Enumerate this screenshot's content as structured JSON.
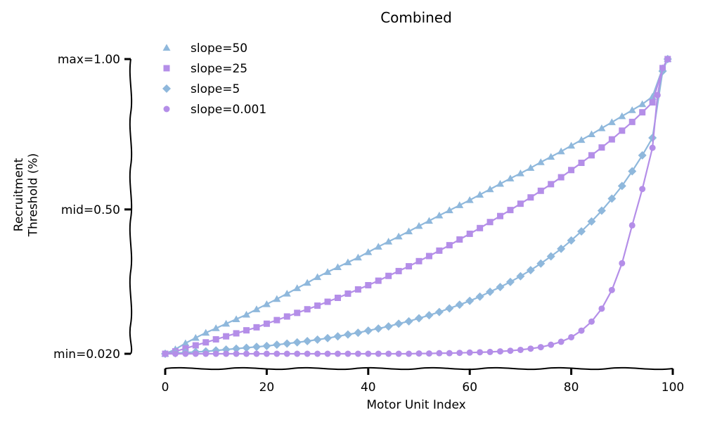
{
  "chart_data": {
    "type": "line",
    "title": "Combined",
    "xlabel": "Motor Unit Index",
    "ylabel": "Recruitment\nThreshold (%)",
    "xlim": [
      0,
      100
    ],
    "ylim": [
      0.0,
      1.0
    ],
    "x_ticks": [
      0,
      20,
      40,
      60,
      80,
      100
    ],
    "y_ticks": [
      {
        "value": 0.02,
        "label": "min=0.020"
      },
      {
        "value": 0.5,
        "label": "mid=0.50"
      },
      {
        "value": 1.0,
        "label": "max=1.00"
      }
    ],
    "grid": false,
    "legend_position": "top-left",
    "series": [
      {
        "name": "slope=50",
        "color": "#8fb8dc",
        "marker": "triangle",
        "x": [
          0,
          2,
          4,
          6,
          8,
          10,
          12,
          14,
          16,
          18,
          20,
          22,
          24,
          26,
          28,
          30,
          32,
          34,
          36,
          38,
          40,
          42,
          44,
          46,
          48,
          50,
          52,
          54,
          56,
          58,
          60,
          62,
          64,
          66,
          68,
          70,
          72,
          74,
          76,
          78,
          80,
          82,
          84,
          86,
          88,
          90,
          92,
          94,
          96,
          98,
          99
        ],
        "y": [
          0.02,
          0.035,
          0.055,
          0.073,
          0.09,
          0.105,
          0.12,
          0.135,
          0.15,
          0.168,
          0.185,
          0.202,
          0.22,
          0.238,
          0.256,
          0.275,
          0.292,
          0.308,
          0.324,
          0.34,
          0.358,
          0.376,
          0.393,
          0.41,
          0.427,
          0.445,
          0.462,
          0.48,
          0.497,
          0.514,
          0.531,
          0.549,
          0.567,
          0.585,
          0.603,
          0.62,
          0.638,
          0.657,
          0.675,
          0.693,
          0.712,
          0.731,
          0.75,
          0.77,
          0.79,
          0.81,
          0.83,
          0.85,
          0.875,
          0.97,
          1.0
        ]
      },
      {
        "name": "slope=25",
        "color": "#b48ee8",
        "marker": "square",
        "x": [
          0,
          2,
          4,
          6,
          8,
          10,
          12,
          14,
          16,
          18,
          20,
          22,
          24,
          26,
          28,
          30,
          32,
          34,
          36,
          38,
          40,
          42,
          44,
          46,
          48,
          50,
          52,
          54,
          56,
          58,
          60,
          62,
          64,
          66,
          68,
          70,
          72,
          74,
          76,
          78,
          80,
          82,
          84,
          86,
          88,
          90,
          92,
          94,
          96,
          98,
          99
        ],
        "y": [
          0.02,
          0.028,
          0.038,
          0.048,
          0.058,
          0.068,
          0.078,
          0.088,
          0.098,
          0.108,
          0.12,
          0.132,
          0.144,
          0.156,
          0.168,
          0.18,
          0.193,
          0.206,
          0.22,
          0.234,
          0.248,
          0.263,
          0.279,
          0.295,
          0.311,
          0.328,
          0.345,
          0.363,
          0.381,
          0.4,
          0.419,
          0.438,
          0.458,
          0.478,
          0.498,
          0.519,
          0.54,
          0.562,
          0.584,
          0.607,
          0.631,
          0.655,
          0.68,
          0.706,
          0.733,
          0.762,
          0.791,
          0.823,
          0.856,
          0.97,
          1.0
        ]
      },
      {
        "name": "slope=5",
        "color": "#8fb8dc",
        "marker": "diamond",
        "x": [
          0,
          2,
          4,
          6,
          8,
          10,
          12,
          14,
          16,
          18,
          20,
          22,
          24,
          26,
          28,
          30,
          32,
          34,
          36,
          38,
          40,
          42,
          44,
          46,
          48,
          50,
          52,
          54,
          56,
          58,
          60,
          62,
          64,
          66,
          68,
          70,
          72,
          74,
          76,
          78,
          80,
          82,
          84,
          86,
          88,
          90,
          92,
          94,
          96,
          98,
          99
        ],
        "y": [
          0.02,
          0.022,
          0.024,
          0.026,
          0.028,
          0.031,
          0.034,
          0.037,
          0.04,
          0.043,
          0.046,
          0.05,
          0.054,
          0.058,
          0.062,
          0.067,
          0.072,
          0.078,
          0.084,
          0.09,
          0.097,
          0.104,
          0.111,
          0.12,
          0.128,
          0.138,
          0.148,
          0.159,
          0.171,
          0.183,
          0.196,
          0.21,
          0.226,
          0.242,
          0.259,
          0.278,
          0.298,
          0.32,
          0.344,
          0.369,
          0.397,
          0.427,
          0.46,
          0.496,
          0.536,
          0.578,
          0.627,
          0.68,
          0.738,
          0.96,
          1.0
        ]
      },
      {
        "name": "slope=0.001",
        "color": "#b48ee8",
        "marker": "circle",
        "x": [
          0,
          2,
          4,
          6,
          8,
          10,
          12,
          14,
          16,
          18,
          20,
          22,
          24,
          26,
          28,
          30,
          32,
          34,
          36,
          38,
          40,
          42,
          44,
          46,
          48,
          50,
          52,
          54,
          56,
          58,
          60,
          62,
          64,
          66,
          68,
          70,
          72,
          74,
          76,
          78,
          80,
          82,
          84,
          86,
          88,
          90,
          92,
          94,
          96,
          97,
          98,
          99
        ],
        "y": [
          0.02,
          0.02,
          0.02,
          0.02,
          0.02,
          0.02,
          0.02,
          0.02,
          0.02,
          0.02,
          0.02,
          0.02,
          0.02,
          0.02,
          0.02,
          0.02,
          0.02,
          0.02,
          0.02,
          0.02,
          0.02,
          0.02,
          0.02,
          0.02,
          0.02,
          0.021,
          0.021,
          0.022,
          0.022,
          0.023,
          0.024,
          0.025,
          0.026,
          0.028,
          0.03,
          0.033,
          0.037,
          0.042,
          0.05,
          0.06,
          0.075,
          0.097,
          0.127,
          0.17,
          0.232,
          0.321,
          0.447,
          0.568,
          0.705,
          0.88,
          0.97,
          1.0
        ]
      }
    ]
  }
}
